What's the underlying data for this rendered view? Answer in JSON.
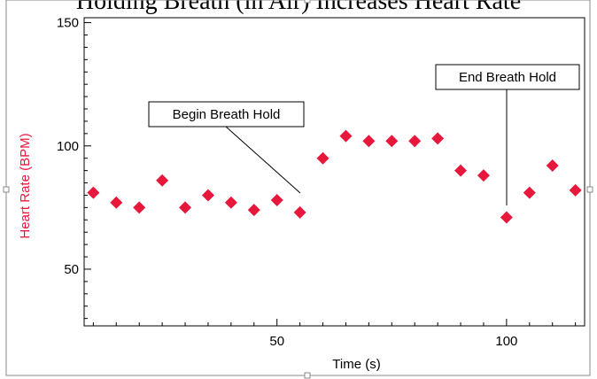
{
  "chart_data": {
    "type": "scatter",
    "title": "Holding Breath (in Air) Increases Heart Rate",
    "xlabel": "Time (s)",
    "ylabel": "Heart Rate (BPM)",
    "xlim": [
      8,
      117
    ],
    "ylim": [
      27,
      152
    ],
    "xticks": [
      50,
      100
    ],
    "yticks": [
      50,
      100,
      150
    ],
    "grid": false,
    "colors": {
      "marker": "#e8173c",
      "ylabel": "#e8173c",
      "axis": "#000000"
    },
    "series": [
      {
        "x": [
          10,
          15,
          20,
          25,
          30,
          35,
          40,
          45,
          50,
          55,
          60,
          65,
          70,
          75,
          80,
          85,
          90,
          95,
          100,
          105,
          110,
          115
        ],
        "y": [
          81,
          77,
          75,
          86,
          75,
          80,
          77,
          74,
          78,
          73,
          95,
          104,
          102,
          102,
          102,
          103,
          90,
          88,
          71,
          81,
          92,
          82
        ]
      }
    ],
    "annotations": [
      {
        "text": "Begin Breath Hold",
        "x": 55,
        "y": 73
      },
      {
        "text": "End Breath Hold",
        "x": 100,
        "y": 71
      }
    ]
  }
}
